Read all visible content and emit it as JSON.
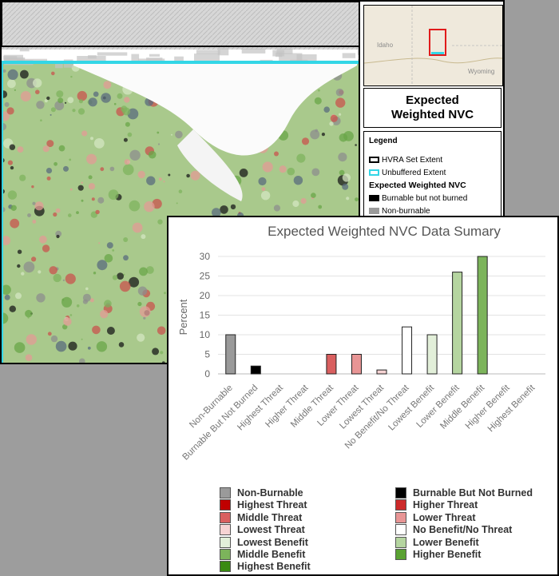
{
  "map": {
    "title": "Expected Weighted NVC",
    "locator": {
      "labels": [
        "Idaho",
        "Wyoming"
      ]
    },
    "legend": {
      "title": "Legend",
      "items": [
        {
          "label": "HVRA Set Extent",
          "fill": "#ffffff",
          "border": "#000000"
        },
        {
          "label": "Unbuffered Extent",
          "fill": "#ffffff",
          "border": "#33d6e6"
        }
      ],
      "subtitle": "Expected Weighted NVC",
      "classes": [
        {
          "label": "Burnable but not burned",
          "fill": "#000000"
        },
        {
          "label": "Non-burnable",
          "fill": "#9a9a9a"
        }
      ]
    }
  },
  "chart_data": {
    "type": "bar",
    "title": "Expected Weighted NVC Data Sumary",
    "ylabel": "Percent",
    "xlabel": "",
    "ylim": [
      0,
      30
    ],
    "yticks": [
      0,
      5,
      10,
      15,
      20,
      25,
      30
    ],
    "grid": true,
    "categories": [
      "Non-Burnable",
      "Burnable But Not Burned",
      "Highest Threat",
      "Higher Threat",
      "Middle Threat",
      "Lower Threat",
      "Lowest Threat",
      "No Benefit/No Threat",
      "Lowest Benefit",
      "Lower Benefit",
      "Middle Benefit",
      "Higher Benefit",
      "Highest Benefit"
    ],
    "values": [
      10,
      2,
      0,
      0,
      5,
      5,
      1,
      12,
      10,
      26,
      30,
      0,
      0
    ],
    "colors": [
      "#9a9a9a",
      "#000000",
      "#c00000",
      "#cc2a2a",
      "#d95f5f",
      "#e89595",
      "#f6d3d3",
      "#ffffff",
      "#e2efd9",
      "#b5d5a0",
      "#7cb45b",
      "#5aa232",
      "#3a8a12"
    ],
    "legend": {
      "placement": "bottom",
      "items": [
        {
          "label": "Non-Burnable",
          "color": "#9a9a9a"
        },
        {
          "label": "Burnable But Not Burned",
          "color": "#000000"
        },
        {
          "label": "Highest Threat",
          "color": "#c00000"
        },
        {
          "label": "Higher Threat",
          "color": "#cc2a2a"
        },
        {
          "label": "Middle Threat",
          "color": "#d95f5f"
        },
        {
          "label": "Lower Threat",
          "color": "#e89595"
        },
        {
          "label": "Lowest Threat",
          "color": "#f6d3d3"
        },
        {
          "label": "No Benefit/No Threat",
          "color": "#ffffff"
        },
        {
          "label": "Lowest Benefit",
          "color": "#e2efd9"
        },
        {
          "label": "Lower Benefit",
          "color": "#b5d5a0"
        },
        {
          "label": "Middle Benefit",
          "color": "#7cb45b"
        },
        {
          "label": "Higher Benefit",
          "color": "#5aa232"
        },
        {
          "label": "Highest Benefit",
          "color": "#3a8a12"
        }
      ]
    }
  }
}
